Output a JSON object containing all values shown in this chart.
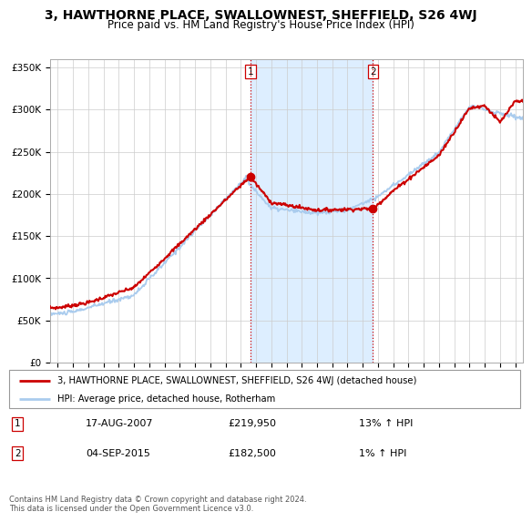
{
  "title": "3, HAWTHORNE PLACE, SWALLOWNEST, SHEFFIELD, S26 4WJ",
  "subtitle": "Price paid vs. HM Land Registry's House Price Index (HPI)",
  "title_fontsize": 10,
  "subtitle_fontsize": 8.5,
  "ylabel_ticks": [
    "£0",
    "£50K",
    "£100K",
    "£150K",
    "£200K",
    "£250K",
    "£300K",
    "£350K"
  ],
  "ytick_values": [
    0,
    50000,
    100000,
    150000,
    200000,
    250000,
    300000,
    350000
  ],
  "ylim": [
    0,
    360000
  ],
  "xlim_start": 1994.5,
  "xlim_end": 2025.5,
  "hpi_color": "#aaccee",
  "price_color": "#cc0000",
  "marker_color": "#cc0000",
  "shade_color": "#ddeeff",
  "transaction1_x": 2007.63,
  "transaction1_y": 219950,
  "transaction2_x": 2015.67,
  "transaction2_y": 182500,
  "legend_label1": "3, HAWTHORNE PLACE, SWALLOWNEST, SHEFFIELD, S26 4WJ (detached house)",
  "legend_label2": "HPI: Average price, detached house, Rotherham",
  "table_row1": [
    "1",
    "17-AUG-2007",
    "£219,950",
    "13% ↑ HPI"
  ],
  "table_row2": [
    "2",
    "04-SEP-2015",
    "£182,500",
    "1% ↑ HPI"
  ],
  "footer": "Contains HM Land Registry data © Crown copyright and database right 2024.\nThis data is licensed under the Open Government Licence v3.0.",
  "background_color": "#ffffff",
  "grid_color": "#cccccc"
}
